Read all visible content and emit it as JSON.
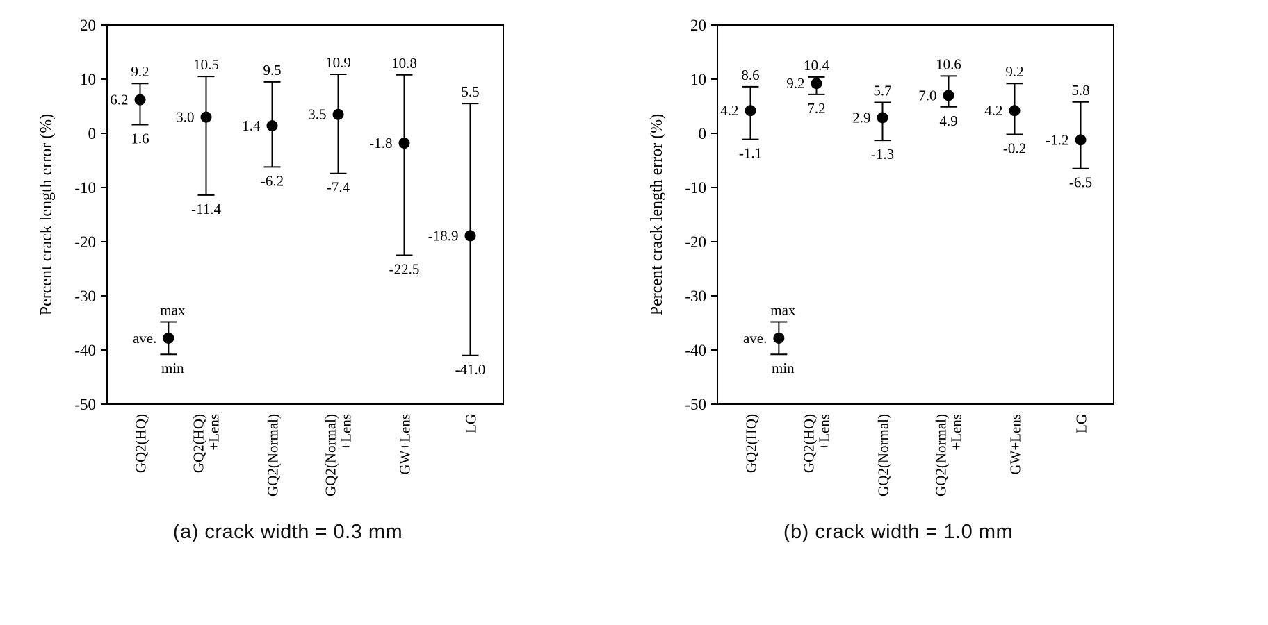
{
  "figure": {
    "background_color": "#ffffff",
    "ink_color": "#000000"
  },
  "chart_data": [
    {
      "type": "errorbar",
      "caption": "(a) crack width = 0.3 mm",
      "ylabel": "Percent crack length error (%)",
      "ylim": [
        -50,
        20
      ],
      "ytick_step": 10,
      "grid": false,
      "legend_position": "inside-lower-left",
      "categories": [
        "GQ2(HQ)",
        "GQ2(HQ)+Lens",
        "GQ2(Normal)",
        "GQ2(Normal)+Lens",
        "GW+Lens",
        "LG"
      ],
      "category_label_lines": [
        [
          "GQ2(HQ)"
        ],
        [
          "GQ2(HQ)",
          "+Lens"
        ],
        [
          "GQ2(Normal)"
        ],
        [
          "GQ2(Normal)",
          "+Lens"
        ],
        [
          "GW+Lens"
        ],
        [
          "LG"
        ]
      ],
      "series": [
        {
          "name": "max",
          "values": [
            9.2,
            10.5,
            9.5,
            10.9,
            10.8,
            5.5
          ]
        },
        {
          "name": "ave",
          "values": [
            6.2,
            3.0,
            1.4,
            3.5,
            -1.8,
            -18.9
          ]
        },
        {
          "name": "min",
          "values": [
            1.6,
            -11.4,
            -6.2,
            -7.4,
            -22.5,
            -41.0
          ]
        }
      ],
      "legend": {
        "labels": [
          "max",
          "ave.",
          "min"
        ],
        "sample_y": {
          "max": -34.8,
          "ave": -37.8,
          "min": -40.8
        }
      }
    },
    {
      "type": "errorbar",
      "caption": "(b) crack width = 1.0 mm",
      "ylabel": "Percent crack length error (%)",
      "ylim": [
        -50,
        20
      ],
      "ytick_step": 10,
      "grid": false,
      "legend_position": "inside-lower-left",
      "categories": [
        "GQ2(HQ)",
        "GQ2(HQ)+Lens",
        "GQ2(Normal)",
        "GQ2(Normal)+Lens",
        "GW+Lens",
        "LG"
      ],
      "category_label_lines": [
        [
          "GQ2(HQ)"
        ],
        [
          "GQ2(HQ)",
          "+Lens"
        ],
        [
          "GQ2(Normal)"
        ],
        [
          "GQ2(Normal)",
          "+Lens"
        ],
        [
          "GW+Lens"
        ],
        [
          "LG"
        ]
      ],
      "series": [
        {
          "name": "max",
          "values": [
            8.6,
            10.4,
            5.7,
            10.6,
            9.2,
            5.8
          ]
        },
        {
          "name": "ave",
          "values": [
            4.2,
            9.2,
            2.9,
            7.0,
            4.2,
            -1.2
          ]
        },
        {
          "name": "min",
          "values": [
            -1.1,
            7.2,
            -1.3,
            4.9,
            -0.2,
            -6.5
          ]
        }
      ],
      "legend": {
        "labels": [
          "max",
          "ave.",
          "min"
        ],
        "sample_y": {
          "max": -34.8,
          "ave": -37.8,
          "min": -40.8
        }
      }
    }
  ]
}
